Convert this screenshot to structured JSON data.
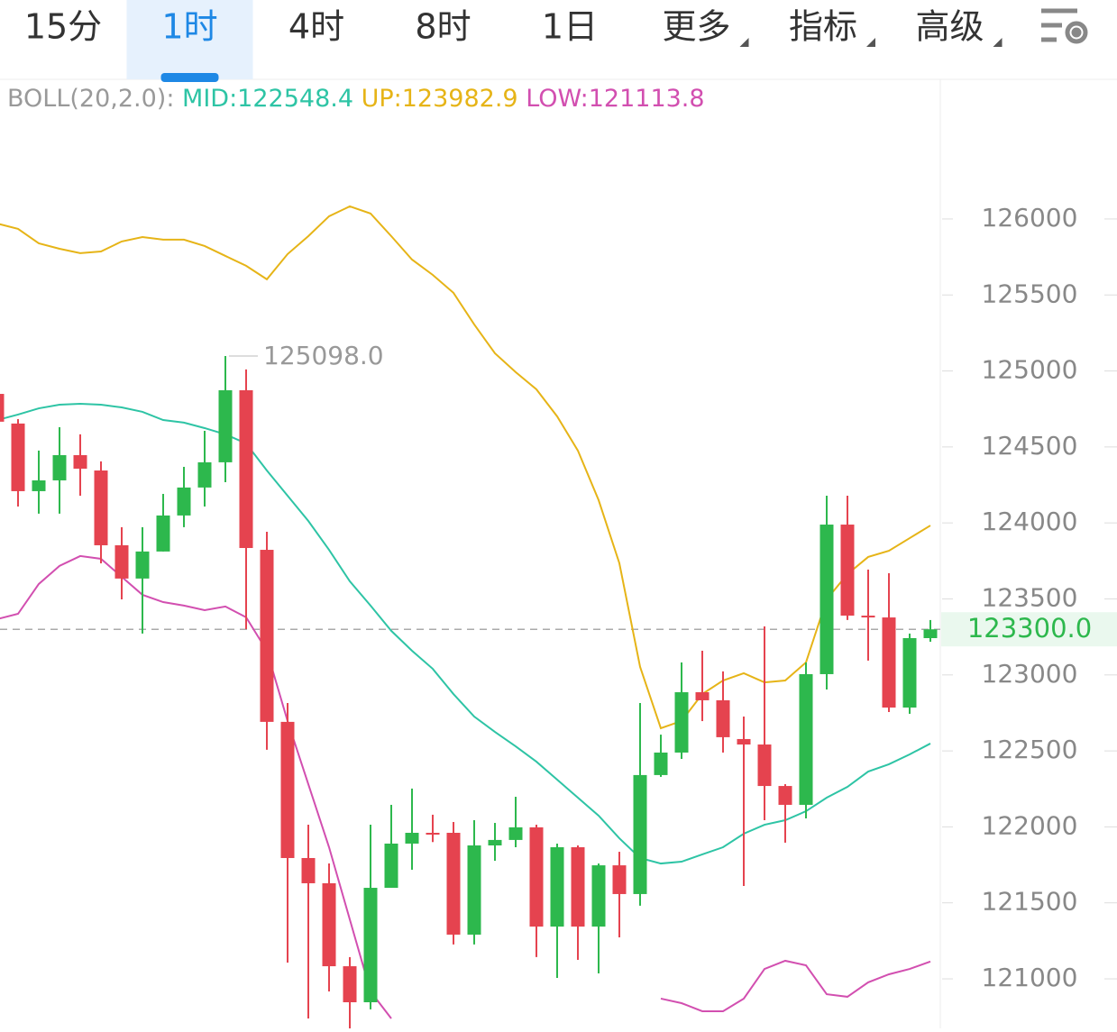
{
  "tabs": [
    {
      "label": "15分"
    },
    {
      "label": "1时",
      "active": true
    },
    {
      "label": "4时"
    },
    {
      "label": "8时"
    },
    {
      "label": "1日"
    },
    {
      "label": "更多",
      "dropdown": true
    },
    {
      "label": "指标",
      "dropdown": true
    },
    {
      "label": "高级",
      "dropdown": true
    }
  ],
  "chart_data": {
    "type": "candlestick",
    "indicator": "BOLL(20,2.0):",
    "ylim": [
      120674,
      126919
    ],
    "yticks": [
      121000,
      121500,
      122000,
      122500,
      123000,
      123500,
      124000,
      124500,
      125000,
      125500,
      126000
    ],
    "candles": {
      "up_color": "#2db84d",
      "down_color": "#e5434f",
      "open": [
        124849,
        124654,
        124209,
        124280,
        124446,
        124345,
        123853,
        123634,
        123812,
        124049,
        124233,
        124399,
        124873,
        123823,
        122691,
        121795,
        121629,
        121083,
        120846,
        121599,
        121890,
        121961,
        121961,
        121291,
        121878,
        121914,
        121997,
        121344,
        121866,
        121344,
        121747,
        121558,
        122341,
        122489,
        122886,
        122833,
        122578,
        122542,
        122269,
        122145,
        123005,
        123989,
        123390,
        123378,
        122785,
        123242
      ],
      "high": [
        124849,
        124683,
        124476,
        124630,
        124583,
        124405,
        123972,
        123972,
        124191,
        124369,
        124606,
        125098,
        125010,
        123942,
        122815,
        122014,
        121759,
        121143,
        122014,
        122145,
        122252,
        122080,
        122032,
        122044,
        122026,
        122198,
        122014,
        121890,
        121878,
        121759,
        121836,
        122815,
        122607,
        123082,
        123159,
        123023,
        122726,
        123319,
        122281,
        123082,
        124179,
        124179,
        123693,
        123669,
        123272,
        123361
      ],
      "low": [
        124666,
        124108,
        124061,
        124061,
        124179,
        123734,
        123497,
        123272,
        123812,
        123972,
        124108,
        124268,
        123301,
        122507,
        121107,
        120739,
        120917,
        120674,
        120799,
        121599,
        121718,
        121900,
        121226,
        121226,
        121777,
        121866,
        121143,
        121006,
        121125,
        121036,
        121273,
        121481,
        122329,
        122447,
        122696,
        122489,
        121611,
        122044,
        121896,
        122056,
        122904,
        123361,
        123094,
        122756,
        122744,
        123218
      ],
      "close": [
        124666,
        124209,
        124280,
        124446,
        124357,
        123853,
        123634,
        123812,
        124049,
        124233,
        124399,
        124873,
        123835,
        122691,
        121795,
        121629,
        121083,
        120846,
        121599,
        121890,
        121961,
        121949,
        121291,
        121878,
        121914,
        121997,
        121344,
        121866,
        121344,
        121747,
        121558,
        122341,
        122489,
        122886,
        122833,
        122590,
        122542,
        122269,
        122145,
        123005,
        123989,
        123390,
        123378,
        122785,
        123242,
        123300
      ]
    },
    "series": [
      {
        "name": "MID",
        "label": "MID:122548.4",
        "color": "#2ec4a5",
        "values": [
          124677,
          124713,
          124754,
          124778,
          124784,
          124778,
          124760,
          124731,
          124677,
          124660,
          124624,
          124583,
          124523,
          124345,
          124179,
          124013,
          123823,
          123616,
          123456,
          123290,
          123159,
          123040,
          122874,
          122726,
          122625,
          122530,
          122429,
          122311,
          122192,
          122074,
          121925,
          121795,
          121759,
          121771,
          121819,
          121866,
          121955,
          122014,
          122044,
          122103,
          122192,
          122263,
          122364,
          122412,
          122477,
          122548.4
        ]
      },
      {
        "name": "UP",
        "label": "UP:123982.9",
        "color": "#e6b417",
        "values": [
          125970,
          125935,
          125840,
          125804,
          125775,
          125786,
          125852,
          125881,
          125864,
          125864,
          125822,
          125757,
          125692,
          125603,
          125769,
          125887,
          126018,
          126083,
          126036,
          125887,
          125733,
          125632,
          125514,
          125306,
          125116,
          124992,
          124879,
          124701,
          124476,
          124150,
          123735,
          123053,
          122649,
          122697,
          122874,
          122963,
          123011,
          122951,
          122963,
          123082,
          123497,
          123663,
          123776,
          123817,
          123900,
          123982.9
        ]
      },
      {
        "name": "LOW",
        "label": "LOW:121113.8",
        "color": "#d24fb0",
        "values": [
          123367,
          123402,
          123598,
          123717,
          123782,
          123764,
          123645,
          123527,
          123479,
          123456,
          123426,
          123450,
          123379,
          123159,
          122696,
          122281,
          121866,
          121391,
          120917,
          120739,
          null,
          null,
          null,
          null,
          null,
          null,
          null,
          null,
          null,
          null,
          null,
          null,
          120870,
          120840,
          120787,
          120787,
          120870,
          121065,
          121119,
          121089,
          120899,
          120882,
          120977,
          121030,
          121065,
          121113.8
        ]
      }
    ],
    "high_annotation": {
      "value": 125098,
      "label": "125098.0",
      "index": 11
    },
    "current_price": {
      "value": 123300,
      "label": "123300.0",
      "color": "#2db84d"
    }
  }
}
